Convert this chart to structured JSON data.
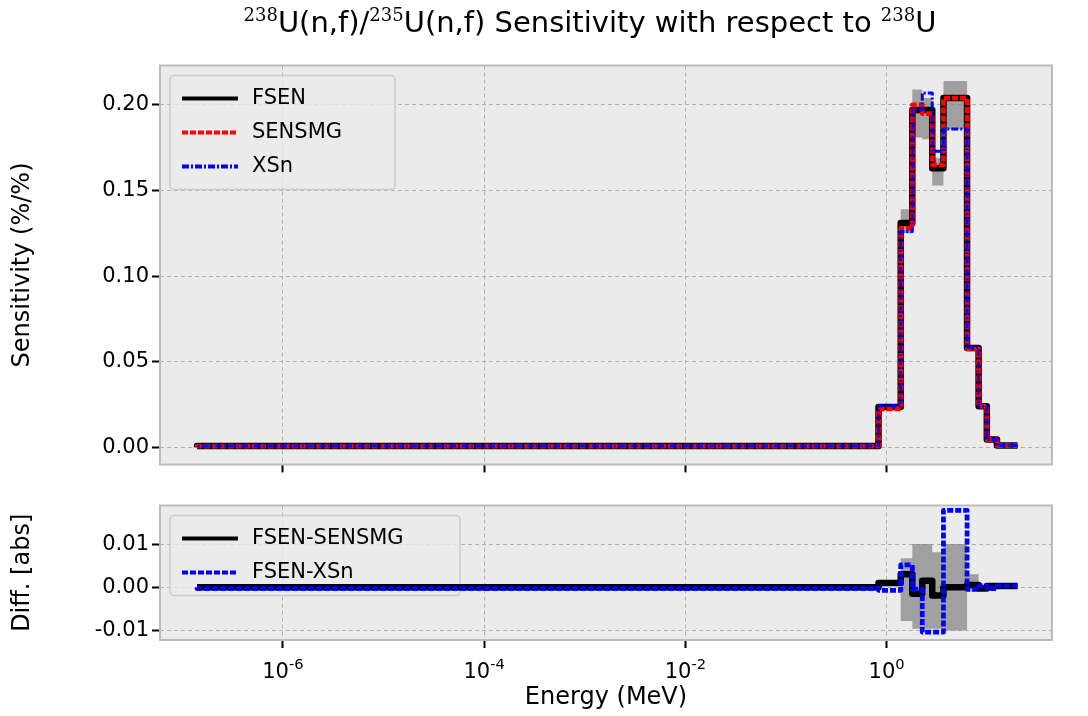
{
  "chart_data": [
    {
      "type": "step",
      "title": "$^{238}$U(n,f)/$^{235}$U(n,f) Sensitivity with respect to $^{238}$U",
      "ylabel": "Sensitivity (%/%)",
      "x": [
        1.4e-07,
        0.83,
        1.38,
        1.8,
        2.26,
        2.84,
        3.67,
        6.3,
        8.2,
        9.9,
        12.5,
        14.5,
        20
      ],
      "series": [
        {
          "name": "FSEN",
          "color": "#000000",
          "line_style": "solid",
          "values": [
            0,
            0.0007,
            0.0235,
            0.131,
            0.197,
            0.197,
            0.163,
            0.204,
            0.058,
            0.024,
            0.0045,
            0.001,
            0.001
          ],
          "lower": [
            0,
            0.0007,
            0.0235,
            0.125,
            0.181,
            0.18,
            0.153,
            0.186,
            0.058,
            0.024,
            0.0045,
            0.001,
            0.001
          ],
          "upper": [
            0,
            0.0007,
            0.0235,
            0.139,
            0.209,
            0.204,
            0.169,
            0.214,
            0.058,
            0.024,
            0.0045,
            0.001,
            0.001
          ]
        },
        {
          "name": "SENSMG",
          "color": "#ff0000",
          "line_style": "dashed",
          "values": [
            0,
            0.0007,
            0.0225,
            0.128,
            0.2,
            0.195,
            0.165,
            0.204,
            0.0575,
            0.024,
            0.0045,
            0.001,
            0.001
          ]
        },
        {
          "name": "XSn",
          "color": "#0000ff",
          "line_style": "dashdot",
          "values": [
            0,
            0.0007,
            0.0242,
            0.126,
            0.197,
            0.207,
            0.173,
            0.186,
            0.0585,
            0.024,
            0.0045,
            0.001,
            0.001
          ]
        }
      ],
      "xlim": [
        6e-08,
        44
      ],
      "xticks": [
        {
          "value": 1e-06,
          "label": null
        },
        {
          "value": 0.0001,
          "label": null
        },
        {
          "value": 0.01,
          "label": null
        },
        {
          "value": 1,
          "label": null
        }
      ],
      "ylim": [
        -0.01,
        0.223
      ],
      "yticks": [
        {
          "value": 0,
          "label": "0.00"
        },
        {
          "value": 0.05,
          "label": "0.05"
        },
        {
          "value": 0.1,
          "label": "0.10"
        },
        {
          "value": 0.15,
          "label": "0.15"
        },
        {
          "value": 0.2,
          "label": "0.20"
        }
      ],
      "log": "x",
      "grid": true,
      "legend": "top left",
      "tick_labels": "y"
    },
    {
      "type": "step",
      "xlabel": "Energy (MeV)",
      "ylabel": "Diff. [abs]",
      "x": [
        1.4e-07,
        0.83,
        1.38,
        1.8,
        2.26,
        2.84,
        3.67,
        6.3,
        8.2,
        9.9,
        12.5,
        14.5,
        20
      ],
      "series": [
        {
          "name": "FSEN-SENSMG",
          "color": "#000000",
          "line_style": "solid",
          "values": [
            0,
            0,
            0.001,
            0.003,
            -0.0015,
            0.0015,
            -0.0019,
            0,
            0.0005,
            -0.0003,
            0.0003,
            0.0003,
            0.0003
          ],
          "lower": [
            0,
            0,
            0,
            -0.0078,
            -0.0096,
            -0.0096,
            -0.0096,
            -0.01,
            -0.001,
            0,
            0,
            0,
            0
          ],
          "upper": [
            0,
            0,
            0,
            0.0067,
            0.01,
            0.01,
            0.0081,
            0.01,
            0.003,
            0,
            0,
            0,
            0
          ]
        },
        {
          "name": "FSEN-XSn",
          "color": "#0000ff",
          "line_style": "dashed",
          "values": [
            0,
            -0.0003,
            -0.0007,
            0.0052,
            -0.0004,
            -0.0104,
            -0.0104,
            0.0178,
            -0.0005,
            0.0003,
            -0.0003,
            0.0003,
            0.0003
          ]
        }
      ],
      "xlim": [
        6e-08,
        44
      ],
      "xticks": [
        {
          "value": 1e-06,
          "label": "10$^{-6}$"
        },
        {
          "value": 0.0001,
          "label": "10$^{-4}$"
        },
        {
          "value": 0.01,
          "label": "10$^{-2}$"
        },
        {
          "value": 1,
          "label": "10$^{0}$"
        }
      ],
      "ylim": [
        -0.0122,
        0.0189
      ],
      "yticks": [
        {
          "value": -0.01,
          "label": "-0.01"
        },
        {
          "value": 0,
          "label": "0.00"
        },
        {
          "value": 0.01,
          "label": "0.01"
        }
      ],
      "log": "x",
      "grid": true,
      "legend": "top left"
    }
  ]
}
